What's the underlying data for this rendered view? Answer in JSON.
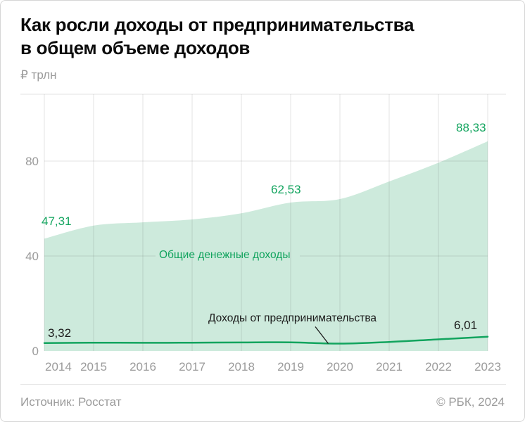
{
  "header": {
    "title_line1": "Как росли доходы от предпринимательства",
    "title_line2": "в общем объеме доходов",
    "unit_label": "₽ трлн"
  },
  "footer": {
    "source": "Источник: Росстат",
    "copyright": "© РБК, 2024"
  },
  "colors": {
    "area_fill": "#cdeadc",
    "line_green": "#12a45e",
    "label_green": "#12a45e",
    "grid": "rgba(0,0,0,0.11)",
    "boundary_line": "#e3e3e3",
    "axis_text": "#9b9b9b",
    "annotation_black": "#1a1a1a"
  },
  "chart_data": {
    "type": "area",
    "title": "Как росли доходы от предпринимательства в общем объеме доходов",
    "ylabel": "₽ трлн",
    "x": [
      2014,
      2015,
      2016,
      2017,
      2018,
      2019,
      2020,
      2021,
      2022,
      2023
    ],
    "series": [
      {
        "name": "Общие денежные доходы",
        "style": "area",
        "values": [
          47.31,
          52.8,
          54.2,
          55.4,
          58.0,
          62.53,
          64.0,
          71.4,
          79.3,
          88.33
        ]
      },
      {
        "name": "Доходы от предпринимательства",
        "style": "line",
        "values": [
          3.32,
          3.5,
          3.45,
          3.5,
          3.6,
          3.65,
          3.1,
          3.8,
          4.9,
          6.01
        ]
      }
    ],
    "y_ticks": [
      0,
      40,
      80
    ],
    "ylim": [
      0,
      108
    ],
    "grid": true,
    "legend_position": "inline-annotations",
    "point_labels": [
      {
        "series": 0,
        "year": 2014,
        "text": "47,31"
      },
      {
        "series": 0,
        "year": 2019,
        "text": "62,53"
      },
      {
        "series": 0,
        "year": 2023,
        "text": "88,33"
      },
      {
        "series": 1,
        "year": 2014,
        "text": "3,32"
      },
      {
        "series": 1,
        "year": 2023,
        "text": "6,01"
      }
    ]
  }
}
